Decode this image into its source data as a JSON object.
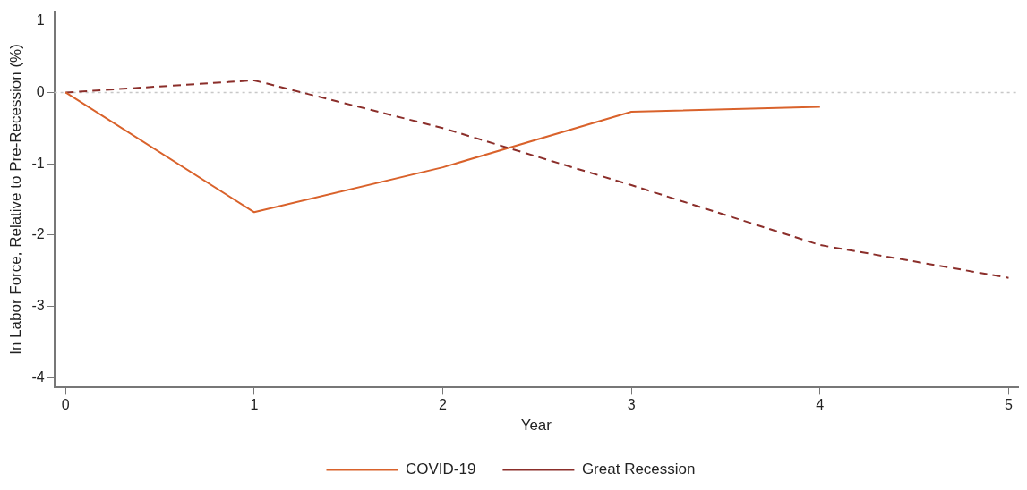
{
  "chart_data": {
    "type": "line",
    "xlabel": "Year",
    "ylabel": "In Labor Force, Relative to Pre-Recession (%)",
    "xlim": [
      -0.06,
      5.05
    ],
    "xticks": [
      0,
      1,
      2,
      3,
      4,
      5
    ],
    "ylim": [
      -4.14,
      1.14
    ],
    "yticks": [
      -4,
      -3,
      -2,
      -1,
      0,
      1
    ],
    "legend": "bottom",
    "marker": "none",
    "ref_lines": [
      {
        "axis": "y",
        "value": 0,
        "color": "#c8c8c8",
        "line_style": "dotted"
      }
    ],
    "series": [
      {
        "name": "COVID-19",
        "color": "#d9622b",
        "line_style": "solid",
        "x": [
          0,
          1,
          2,
          3,
          4
        ],
        "values": [
          0,
          -1.68,
          -1.05,
          -0.27,
          -0.2
        ]
      },
      {
        "name": "Great Recession",
        "color": "#8b2e2a",
        "line_style": "dashed",
        "x": [
          0,
          1,
          2,
          3,
          4,
          5
        ],
        "values": [
          0,
          0.17,
          -0.5,
          -1.3,
          -2.14,
          -2.6
        ]
      }
    ]
  }
}
